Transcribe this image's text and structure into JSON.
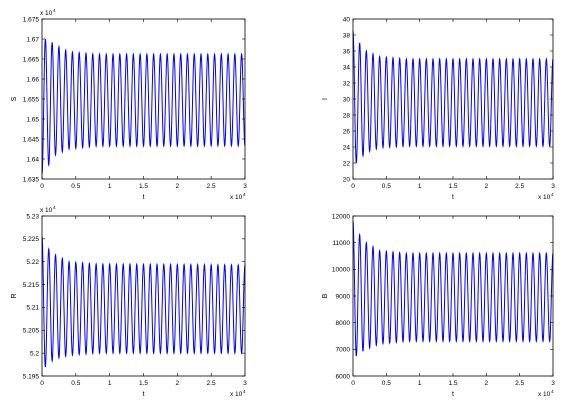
{
  "chart_data": [
    {
      "type": "line",
      "xlabel": "t",
      "ylabel": "S",
      "xlim": [
        0,
        30000
      ],
      "ylim": [
        16350,
        16750
      ],
      "x_ticks": [
        0,
        5000,
        10000,
        15000,
        20000,
        25000,
        30000
      ],
      "x_tick_labels": [
        "0",
        "0.5",
        "1",
        "1.5",
        "2",
        "2.5",
        "3"
      ],
      "x_multiplier": "x 10",
      "x_multiplier_exp": "4",
      "y_ticks": [
        16350,
        16400,
        16450,
        16500,
        16550,
        16600,
        16650,
        16700,
        16750
      ],
      "y_tick_labels": [
        "1.635",
        "1.64",
        "1.645",
        "1.65",
        "1.655",
        "1.66",
        "1.665",
        "1.67",
        "1.675"
      ],
      "y_multiplier": "x 10",
      "y_multiplier_exp": "4",
      "color": "#0000ff",
      "period": 1000,
      "start_phase": "trough",
      "series": [
        {
          "values_desc": "damped oscillation",
          "x": [
            0,
            500,
            1000,
            2000,
            4000,
            8000,
            30000
          ],
          "upper": [
            16700,
            16700,
            16698,
            16685,
            16668,
            16662,
            16662
          ],
          "lower": [
            16362,
            16370,
            16385,
            16410,
            16425,
            16432,
            16433
          ]
        }
      ]
    },
    {
      "type": "line",
      "xlabel": "t",
      "ylabel": "I",
      "xlim": [
        0,
        30000
      ],
      "ylim": [
        20,
        40
      ],
      "x_ticks": [
        0,
        5000,
        10000,
        15000,
        20000,
        25000,
        30000
      ],
      "x_tick_labels": [
        "0",
        "0.5",
        "1",
        "1.5",
        "2",
        "2.5",
        "3"
      ],
      "x_multiplier": "x 10",
      "x_multiplier_exp": "4",
      "y_ticks": [
        20,
        22,
        24,
        26,
        28,
        30,
        32,
        34,
        36,
        38,
        40
      ],
      "y_tick_labels": [
        "20",
        "22",
        "24",
        "26",
        "28",
        "30",
        "32",
        "34",
        "36",
        "38",
        "40"
      ],
      "color": "#0000ff",
      "period": 1000,
      "start_phase": "peak",
      "series": [
        {
          "x": [
            0,
            500,
            1000,
            2000,
            4000,
            8000,
            30000
          ],
          "upper": [
            38.5,
            37.5,
            37,
            36,
            35.3,
            35,
            35
          ],
          "lower": [
            21.5,
            22,
            22.5,
            23.3,
            23.9,
            24.1,
            24.1
          ]
        }
      ]
    },
    {
      "type": "line",
      "xlabel": "t",
      "ylabel": "R",
      "xlim": [
        0,
        30000
      ],
      "ylim": [
        51950,
        52300
      ],
      "x_ticks": [
        0,
        5000,
        10000,
        15000,
        20000,
        25000,
        30000
      ],
      "x_tick_labels": [
        "0",
        "0.5",
        "1",
        "1.5",
        "2",
        "2.5",
        "3"
      ],
      "x_multiplier": "x 10",
      "x_multiplier_exp": "4",
      "y_ticks": [
        51950,
        52000,
        52050,
        52100,
        52150,
        52200,
        52250,
        52300
      ],
      "y_tick_labels": [
        "5.195",
        "5.2",
        "5.205",
        "5.21",
        "5.215",
        "5.22",
        "5.225",
        "5.23"
      ],
      "y_multiplier": "x 10",
      "y_multiplier_exp": "4",
      "color": "#0000ff",
      "period": 1000,
      "start_phase": "peak",
      "series": [
        {
          "x": [
            0,
            500,
            1000,
            2000,
            4000,
            8000,
            30000
          ],
          "upper": [
            52255,
            52240,
            52228,
            52215,
            52200,
            52195,
            52193
          ],
          "lower": [
            51960,
            51970,
            51978,
            51988,
            51995,
            52000,
            52000
          ]
        }
      ]
    },
    {
      "type": "line",
      "xlabel": "t",
      "ylabel": "B",
      "xlim": [
        0,
        30000
      ],
      "ylim": [
        6000,
        12000
      ],
      "x_ticks": [
        0,
        5000,
        10000,
        15000,
        20000,
        25000,
        30000
      ],
      "x_tick_labels": [
        "0",
        "0.5",
        "1",
        "1.5",
        "2",
        "2.5",
        "3"
      ],
      "x_multiplier": "x 10",
      "x_multiplier_exp": "4",
      "y_ticks": [
        6000,
        7000,
        8000,
        9000,
        10000,
        11000,
        12000
      ],
      "y_tick_labels": [
        "6000",
        "7000",
        "8000",
        "9000",
        "10000",
        "11000",
        "12000"
      ],
      "color": "#0000ff",
      "period": 1000,
      "start_phase": "peak",
      "series": [
        {
          "x": [
            0,
            500,
            1000,
            2000,
            4000,
            8000,
            30000
          ],
          "upper": [
            11800,
            11500,
            11300,
            11000,
            10700,
            10600,
            10600
          ],
          "lower": [
            6600,
            6750,
            6850,
            7000,
            7200,
            7300,
            7300
          ]
        }
      ]
    }
  ]
}
